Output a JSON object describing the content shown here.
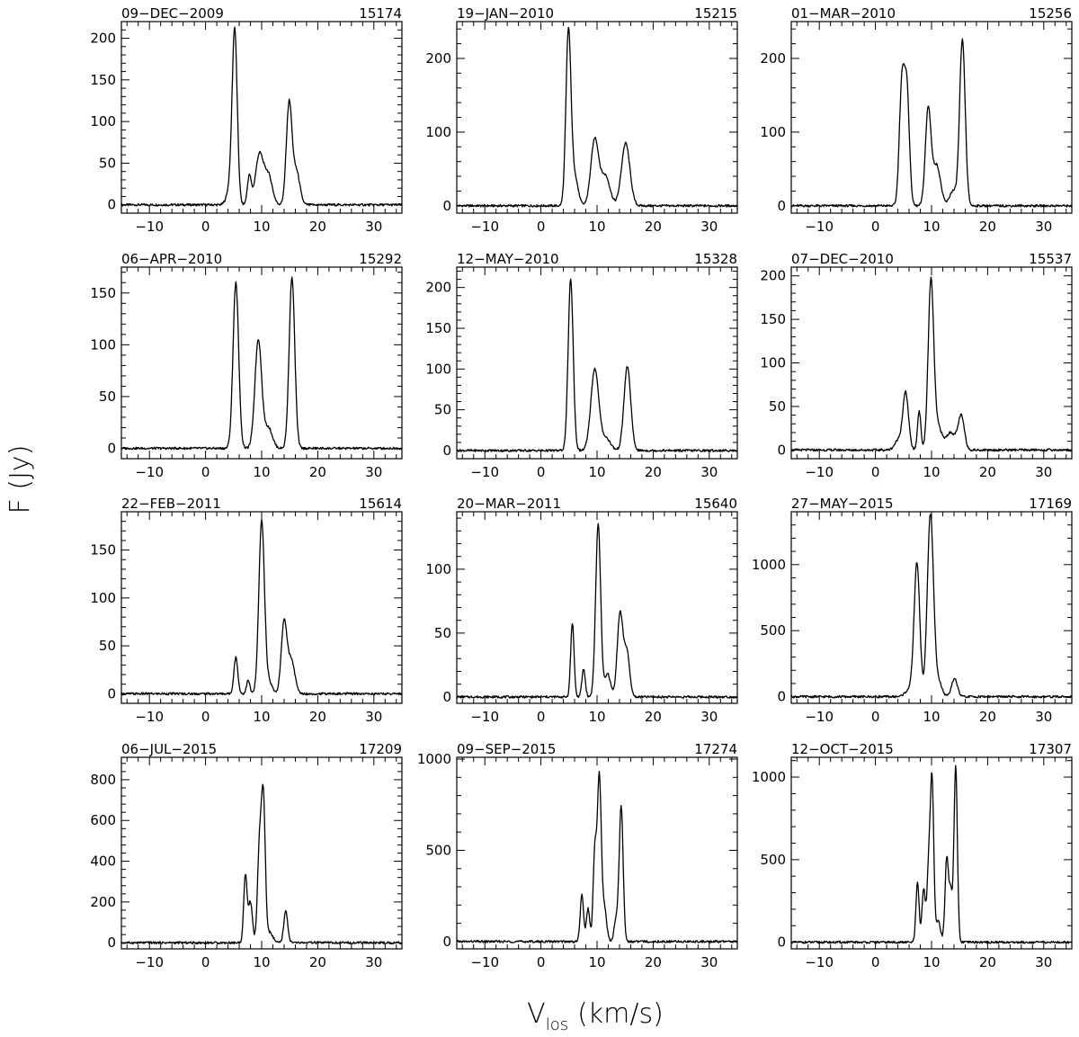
{
  "figure": {
    "ylabel": "F (Jy)",
    "xlabel_main": "V",
    "xlabel_sub": "los",
    "xlabel_unit": "(km/s)"
  },
  "chart_data": [
    {
      "type": "line",
      "date": "09-DEC-2009",
      "id": "15174",
      "xlim": [
        -15,
        35
      ],
      "ylim": [
        -10,
        220
      ],
      "xticks": [
        -10,
        0,
        10,
        20,
        30
      ],
      "yticks": [
        0,
        50,
        100,
        150,
        200
      ],
      "peaks": [
        {
          "v": 5.2,
          "amp": 205,
          "w": 0.45
        },
        {
          "v": 4.4,
          "amp": 20,
          "w": 0.6
        },
        {
          "v": 7.8,
          "amp": 34,
          "w": 0.35
        },
        {
          "v": 9.6,
          "amp": 60,
          "w": 0.7
        },
        {
          "v": 11.2,
          "amp": 35,
          "w": 0.7
        },
        {
          "v": 14.9,
          "amp": 122,
          "w": 0.5
        },
        {
          "v": 16.2,
          "amp": 40,
          "w": 0.6
        }
      ]
    },
    {
      "type": "line",
      "date": "19-JAN-2010",
      "id": "15215",
      "xlim": [
        -15,
        35
      ],
      "ylim": [
        -10,
        250
      ],
      "xticks": [
        -10,
        0,
        10,
        20,
        30
      ],
      "yticks": [
        0,
        100,
        200
      ],
      "peaks": [
        {
          "v": 4.9,
          "amp": 235,
          "w": 0.45
        },
        {
          "v": 6.0,
          "amp": 40,
          "w": 0.6
        },
        {
          "v": 9.6,
          "amp": 90,
          "w": 0.7
        },
        {
          "v": 11.5,
          "amp": 40,
          "w": 0.8
        },
        {
          "v": 15.1,
          "amp": 85,
          "w": 0.75
        }
      ]
    },
    {
      "type": "line",
      "date": "01-MAR-2010",
      "id": "15256",
      "xlim": [
        -15,
        35
      ],
      "ylim": [
        -10,
        250
      ],
      "xticks": [
        -10,
        0,
        10,
        20,
        30
      ],
      "yticks": [
        0,
        100,
        200
      ],
      "peaks": [
        {
          "v": 4.7,
          "amp": 160,
          "w": 0.45
        },
        {
          "v": 5.6,
          "amp": 155,
          "w": 0.45
        },
        {
          "v": 9.4,
          "amp": 130,
          "w": 0.5
        },
        {
          "v": 10.9,
          "amp": 55,
          "w": 0.7
        },
        {
          "v": 15.5,
          "amp": 225,
          "w": 0.5
        },
        {
          "v": 13.8,
          "amp": 20,
          "w": 0.6
        }
      ]
    },
    {
      "type": "line",
      "date": "06-APR-2010",
      "id": "15292",
      "xlim": [
        -15,
        35
      ],
      "ylim": [
        -10,
        175
      ],
      "xticks": [
        -10,
        0,
        10,
        20,
        30
      ],
      "yticks": [
        0,
        50,
        100,
        150
      ],
      "peaks": [
        {
          "v": 5.4,
          "amp": 160,
          "w": 0.5
        },
        {
          "v": 9.4,
          "amp": 105,
          "w": 0.6
        },
        {
          "v": 11.2,
          "amp": 20,
          "w": 0.7
        },
        {
          "v": 15.4,
          "amp": 165,
          "w": 0.5
        }
      ]
    },
    {
      "type": "line",
      "date": "12-MAY-2010",
      "id": "15328",
      "xlim": [
        -15,
        35
      ],
      "ylim": [
        -10,
        225
      ],
      "xticks": [
        -10,
        0,
        10,
        20,
        30
      ],
      "yticks": [
        0,
        50,
        100,
        150,
        200
      ],
      "peaks": [
        {
          "v": 5.3,
          "amp": 210,
          "w": 0.45
        },
        {
          "v": 9.6,
          "amp": 100,
          "w": 0.7
        },
        {
          "v": 11.6,
          "amp": 15,
          "w": 0.8
        },
        {
          "v": 15.4,
          "amp": 103,
          "w": 0.6
        }
      ]
    },
    {
      "type": "line",
      "date": "07-DEC-2010",
      "id": "15537",
      "xlim": [
        -15,
        35
      ],
      "ylim": [
        -10,
        210
      ],
      "xticks": [
        -10,
        0,
        10,
        20,
        30
      ],
      "yticks": [
        0,
        50,
        100,
        150,
        200
      ],
      "peaks": [
        {
          "v": 5.4,
          "amp": 64,
          "w": 0.5
        },
        {
          "v": 4.2,
          "amp": 12,
          "w": 0.7
        },
        {
          "v": 7.8,
          "amp": 45,
          "w": 0.3
        },
        {
          "v": 9.9,
          "amp": 195,
          "w": 0.5
        },
        {
          "v": 11.2,
          "amp": 25,
          "w": 0.6
        },
        {
          "v": 13.4,
          "amp": 20,
          "w": 0.9
        },
        {
          "v": 15.3,
          "amp": 38,
          "w": 0.55
        }
      ]
    },
    {
      "type": "line",
      "date": "22-FEB-2011",
      "id": "15614",
      "xlim": [
        -15,
        35
      ],
      "ylim": [
        -10,
        190
      ],
      "xticks": [
        -10,
        0,
        10,
        20,
        30
      ],
      "yticks": [
        0,
        50,
        100,
        150
      ],
      "peaks": [
        {
          "v": 5.4,
          "amp": 38,
          "w": 0.35
        },
        {
          "v": 7.6,
          "amp": 14,
          "w": 0.3
        },
        {
          "v": 10.0,
          "amp": 180,
          "w": 0.5
        },
        {
          "v": 11.3,
          "amp": 12,
          "w": 0.6
        },
        {
          "v": 14.0,
          "amp": 75,
          "w": 0.5
        },
        {
          "v": 15.3,
          "amp": 35,
          "w": 0.6
        }
      ]
    },
    {
      "type": "line",
      "date": "20-MAR-2011",
      "id": "15640",
      "xlim": [
        -15,
        35
      ],
      "ylim": [
        -5,
        145
      ],
      "xticks": [
        -10,
        0,
        10,
        20,
        30
      ],
      "yticks": [
        0,
        50,
        100
      ],
      "peaks": [
        {
          "v": 5.6,
          "amp": 58,
          "w": 0.3
        },
        {
          "v": 7.6,
          "amp": 22,
          "w": 0.3
        },
        {
          "v": 10.2,
          "amp": 135,
          "w": 0.45
        },
        {
          "v": 11.9,
          "amp": 18,
          "w": 0.5
        },
        {
          "v": 14.1,
          "amp": 65,
          "w": 0.5
        },
        {
          "v": 15.3,
          "amp": 35,
          "w": 0.5
        }
      ]
    },
    {
      "type": "line",
      "date": "27-MAY-2015",
      "id": "17169",
      "xlim": [
        -15,
        35
      ],
      "ylim": [
        -50,
        1400
      ],
      "xticks": [
        -10,
        0,
        10,
        20,
        30
      ],
      "yticks": [
        0,
        500,
        1000
      ],
      "peaks": [
        {
          "v": 7.4,
          "amp": 1000,
          "w": 0.5
        },
        {
          "v": 9.8,
          "amp": 1380,
          "w": 0.55
        },
        {
          "v": 11.2,
          "amp": 120,
          "w": 0.6
        },
        {
          "v": 14.1,
          "amp": 140,
          "w": 0.5
        },
        {
          "v": 6.2,
          "amp": 60,
          "w": 0.8
        }
      ]
    },
    {
      "type": "line",
      "date": "06-JUL-2015",
      "id": "17209",
      "xlim": [
        -15,
        35
      ],
      "ylim": [
        -30,
        910
      ],
      "xticks": [
        -10,
        0,
        10,
        20,
        30
      ],
      "yticks": [
        0,
        200,
        400,
        600,
        800
      ],
      "peaks": [
        {
          "v": 7.1,
          "amp": 330,
          "w": 0.3
        },
        {
          "v": 8.0,
          "amp": 200,
          "w": 0.35
        },
        {
          "v": 9.6,
          "amp": 450,
          "w": 0.35
        },
        {
          "v": 10.3,
          "amp": 700,
          "w": 0.35
        },
        {
          "v": 11.5,
          "amp": 50,
          "w": 0.5
        },
        {
          "v": 14.3,
          "amp": 155,
          "w": 0.35
        }
      ]
    },
    {
      "type": "line",
      "date": "09-SEP-2015",
      "id": "17274",
      "xlim": [
        -15,
        35
      ],
      "ylim": [
        -40,
        1010
      ],
      "xticks": [
        -10,
        0,
        10,
        20,
        30
      ],
      "yticks": [
        0,
        500,
        1000
      ],
      "peaks": [
        {
          "v": 7.3,
          "amp": 255,
          "w": 0.3
        },
        {
          "v": 8.4,
          "amp": 180,
          "w": 0.3
        },
        {
          "v": 9.6,
          "amp": 480,
          "w": 0.3
        },
        {
          "v": 10.4,
          "amp": 900,
          "w": 0.35
        },
        {
          "v": 11.3,
          "amp": 180,
          "w": 0.4
        },
        {
          "v": 14.3,
          "amp": 740,
          "w": 0.35
        },
        {
          "v": 13.4,
          "amp": 120,
          "w": 0.35
        }
      ]
    },
    {
      "type": "line",
      "date": "12-OCT-2015",
      "id": "17307",
      "xlim": [
        -15,
        35
      ],
      "ylim": [
        -40,
        1120
      ],
      "xticks": [
        -10,
        0,
        10,
        20,
        30
      ],
      "yticks": [
        0,
        500,
        1000
      ],
      "peaks": [
        {
          "v": 7.5,
          "amp": 360,
          "w": 0.28
        },
        {
          "v": 8.6,
          "amp": 320,
          "w": 0.3
        },
        {
          "v": 9.5,
          "amp": 450,
          "w": 0.3
        },
        {
          "v": 10.1,
          "amp": 960,
          "w": 0.3
        },
        {
          "v": 11.2,
          "amp": 130,
          "w": 0.4
        },
        {
          "v": 12.7,
          "amp": 500,
          "w": 0.3
        },
        {
          "v": 14.3,
          "amp": 1060,
          "w": 0.3
        },
        {
          "v": 13.4,
          "amp": 300,
          "w": 0.3
        }
      ]
    }
  ]
}
